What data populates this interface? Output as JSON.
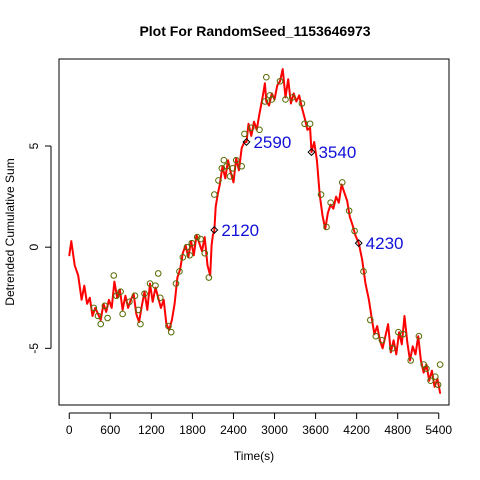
{
  "chart_data": {
    "type": "line",
    "title": "Plot For RandomSeed_1153646973",
    "xlabel": "Time(s)",
    "ylabel": "Detrended Cumulative Sum",
    "xlim": [
      -150,
      5550
    ],
    "ylim": [
      -7.8,
      9.3
    ],
    "x_ticks": [
      0,
      600,
      1200,
      1800,
      2400,
      3000,
      3600,
      4200,
      4800,
      5400
    ],
    "y_ticks": [
      -5,
      0,
      5
    ],
    "grid": false,
    "legend": "none",
    "colors": {
      "line": "#ff0000",
      "circle_marker": "#556b00",
      "diamond_marker": "#000000",
      "annotation": "#1010d8"
    },
    "series": [
      {
        "values": [
          [
            0,
            -0.4
          ],
          [
            30,
            0.3
          ],
          [
            80,
            -0.9
          ],
          [
            130,
            -1.4
          ],
          [
            160,
            -2.1
          ],
          [
            180,
            -2.6
          ],
          [
            220,
            -1.9
          ],
          [
            260,
            -2.8
          ],
          [
            300,
            -2.5
          ],
          [
            340,
            -3.4
          ],
          [
            380,
            -3.0
          ],
          [
            420,
            -3.3
          ],
          [
            460,
            -3.6
          ],
          [
            500,
            -2.8
          ],
          [
            540,
            -3.2
          ],
          [
            580,
            -2.6
          ],
          [
            620,
            -3.0
          ],
          [
            660,
            -1.7
          ],
          [
            700,
            -2.5
          ],
          [
            740,
            -2.1
          ],
          [
            780,
            -3.1
          ],
          [
            820,
            -2.4
          ],
          [
            860,
            -3.0
          ],
          [
            900,
            -2.6
          ],
          [
            940,
            -2.3
          ],
          [
            980,
            -3.3
          ],
          [
            1020,
            -3.7
          ],
          [
            1060,
            -2.9
          ],
          [
            1100,
            -2.2
          ],
          [
            1140,
            -3.1
          ],
          [
            1180,
            -1.8
          ],
          [
            1220,
            -2.7
          ],
          [
            1260,
            -2.0
          ],
          [
            1300,
            -2.5
          ],
          [
            1340,
            -3.0
          ],
          [
            1380,
            -2.6
          ],
          [
            1420,
            -3.8
          ],
          [
            1460,
            -4.1
          ],
          [
            1500,
            -3.6
          ],
          [
            1540,
            -2.8
          ],
          [
            1580,
            -1.5
          ],
          [
            1620,
            -1.1
          ],
          [
            1660,
            -0.3
          ],
          [
            1700,
            0.1
          ],
          [
            1740,
            -0.5
          ],
          [
            1780,
            0.3
          ],
          [
            1820,
            -0.4
          ],
          [
            1860,
            0.6
          ],
          [
            1900,
            0.2
          ],
          [
            1940,
            -0.2
          ],
          [
            1980,
            0.5
          ],
          [
            2020,
            -0.9
          ],
          [
            2060,
            -1.4
          ],
          [
            2080,
            0.1
          ],
          [
            2100,
            0.6
          ],
          [
            2120,
            0.8
          ],
          [
            2140,
            2.0
          ],
          [
            2170,
            2.6
          ],
          [
            2200,
            3.1
          ],
          [
            2240,
            4.0
          ],
          [
            2280,
            3.4
          ],
          [
            2320,
            4.3
          ],
          [
            2360,
            3.7
          ],
          [
            2400,
            3.2
          ],
          [
            2440,
            4.4
          ],
          [
            2480,
            3.8
          ],
          [
            2520,
            4.9
          ],
          [
            2560,
            5.2
          ],
          [
            2590,
            5.2
          ],
          [
            2620,
            6.1
          ],
          [
            2660,
            5.5
          ],
          [
            2700,
            6.2
          ],
          [
            2740,
            5.8
          ],
          [
            2780,
            6.6
          ],
          [
            2820,
            7.3
          ],
          [
            2860,
            8.1
          ],
          [
            2880,
            7.2
          ],
          [
            2920,
            7.0
          ],
          [
            2960,
            7.6
          ],
          [
            3000,
            7.3
          ],
          [
            3040,
            8.0
          ],
          [
            3080,
            8.2
          ],
          [
            3120,
            8.8
          ],
          [
            3160,
            7.4
          ],
          [
            3200,
            8.3
          ],
          [
            3240,
            7.1
          ],
          [
            3280,
            7.6
          ],
          [
            3320,
            7.2
          ],
          [
            3360,
            7.5
          ],
          [
            3400,
            6.9
          ],
          [
            3440,
            6.4
          ],
          [
            3480,
            5.8
          ],
          [
            3520,
            5.9
          ],
          [
            3540,
            4.7
          ],
          [
            3580,
            5.2
          ],
          [
            3620,
            4.3
          ],
          [
            3660,
            2.6
          ],
          [
            3700,
            1.6
          ],
          [
            3740,
            0.9
          ],
          [
            3780,
            1.7
          ],
          [
            3820,
            2.1
          ],
          [
            3860,
            1.9
          ],
          [
            3900,
            2.5
          ],
          [
            3940,
            2.2
          ],
          [
            3980,
            3.1
          ],
          [
            4020,
            2.7
          ],
          [
            4060,
            2.3
          ],
          [
            4100,
            1.5
          ],
          [
            4140,
            1.1
          ],
          [
            4180,
            0.6
          ],
          [
            4230,
            0.2
          ],
          [
            4280,
            -0.6
          ],
          [
            4330,
            -1.8
          ],
          [
            4380,
            -2.6
          ],
          [
            4420,
            -3.5
          ],
          [
            4460,
            -4.3
          ],
          [
            4500,
            -3.9
          ],
          [
            4540,
            -4.6
          ],
          [
            4580,
            -5.0
          ],
          [
            4620,
            -4.4
          ],
          [
            4660,
            -3.8
          ],
          [
            4700,
            -5.2
          ],
          [
            4740,
            -4.6
          ],
          [
            4780,
            -5.3
          ],
          [
            4820,
            -4.2
          ],
          [
            4860,
            -4.8
          ],
          [
            4900,
            -3.4
          ],
          [
            4940,
            -4.7
          ],
          [
            4980,
            -5.6
          ],
          [
            5020,
            -4.9
          ],
          [
            5060,
            -5.3
          ],
          [
            5100,
            -4.4
          ],
          [
            5140,
            -5.6
          ],
          [
            5180,
            -6.2
          ],
          [
            5220,
            -5.8
          ],
          [
            5260,
            -6.6
          ],
          [
            5300,
            -6.1
          ],
          [
            5340,
            -6.9
          ],
          [
            5380,
            -6.5
          ],
          [
            5420,
            -7.2
          ]
        ]
      }
    ],
    "circle_markers": [
      [
        360,
        -3.0
      ],
      [
        420,
        -3.4
      ],
      [
        460,
        -3.8
      ],
      [
        520,
        -2.9
      ],
      [
        560,
        -3.5
      ],
      [
        650,
        -1.4
      ],
      [
        690,
        -2.4
      ],
      [
        750,
        -2.2
      ],
      [
        780,
        -3.3
      ],
      [
        880,
        -2.7
      ],
      [
        960,
        -2.4
      ],
      [
        1010,
        -3.1
      ],
      [
        1040,
        -3.8
      ],
      [
        1100,
        -2.3
      ],
      [
        1180,
        -1.8
      ],
      [
        1260,
        -1.9
      ],
      [
        1300,
        -1.3
      ],
      [
        1330,
        -2.5
      ],
      [
        1450,
        -3.9
      ],
      [
        1490,
        -4.2
      ],
      [
        1560,
        -1.8
      ],
      [
        1610,
        -1.2
      ],
      [
        1660,
        -0.5
      ],
      [
        1720,
        0.0
      ],
      [
        1760,
        -0.4
      ],
      [
        1790,
        0.2
      ],
      [
        1870,
        0.5
      ],
      [
        1920,
        0.4
      ],
      [
        1980,
        -0.3
      ],
      [
        2040,
        -1.5
      ],
      [
        2120,
        2.6
      ],
      [
        2180,
        3.3
      ],
      [
        2230,
        3.9
      ],
      [
        2260,
        4.3
      ],
      [
        2300,
        4.0
      ],
      [
        2350,
        3.5
      ],
      [
        2390,
        3.9
      ],
      [
        2440,
        4.3
      ],
      [
        2520,
        4.0
      ],
      [
        2560,
        5.6
      ],
      [
        2660,
        5.9
      ],
      [
        2780,
        5.8
      ],
      [
        2860,
        7.2
      ],
      [
        2880,
        8.4
      ],
      [
        2930,
        7.5
      ],
      [
        2960,
        7.3
      ],
      [
        3080,
        8.2
      ],
      [
        3160,
        7.3
      ],
      [
        3260,
        7.4
      ],
      [
        3400,
        7.1
      ],
      [
        3440,
        6.1
      ],
      [
        3520,
        6.1
      ],
      [
        3680,
        2.6
      ],
      [
        3760,
        1.0
      ],
      [
        3820,
        2.2
      ],
      [
        3990,
        3.2
      ],
      [
        4090,
        1.8
      ],
      [
        4170,
        0.8
      ],
      [
        4300,
        -1.2
      ],
      [
        4400,
        -3.6
      ],
      [
        4480,
        -4.4
      ],
      [
        4570,
        -4.6
      ],
      [
        4720,
        -5.0
      ],
      [
        4810,
        -4.2
      ],
      [
        4880,
        -4.3
      ],
      [
        4990,
        -5.6
      ],
      [
        5110,
        -4.4
      ],
      [
        5180,
        -5.8
      ],
      [
        5220,
        -6.0
      ],
      [
        5280,
        -6.6
      ],
      [
        5350,
        -6.4
      ],
      [
        5390,
        -6.8
      ],
      [
        5420,
        -5.8
      ]
    ],
    "annotations": [
      {
        "x": 2120,
        "y": 0.85,
        "label": "2120"
      },
      {
        "x": 2590,
        "y": 5.2,
        "label": "2590"
      },
      {
        "x": 3540,
        "y": 4.7,
        "label": "3540"
      },
      {
        "x": 4230,
        "y": 0.2,
        "label": "4230"
      }
    ]
  }
}
